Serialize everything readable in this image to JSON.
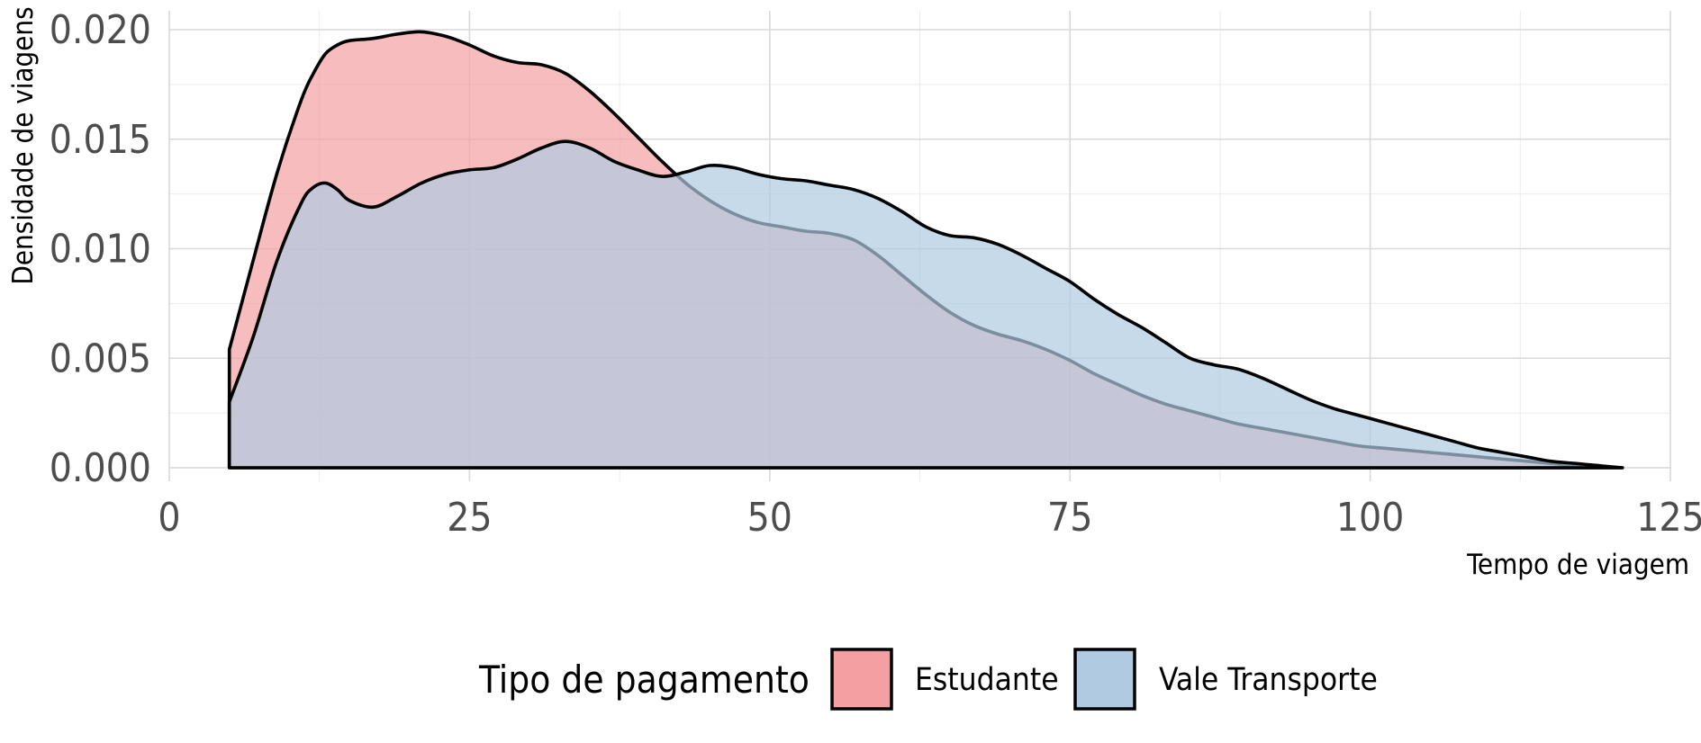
{
  "chart_data": {
    "type": "area",
    "subtype": "density",
    "xlabel": "Tempo de viagem",
    "ylabel": "Densidade de viagens",
    "xlim": [
      0,
      125
    ],
    "ylim": [
      0,
      0.02
    ],
    "x_ticks": [
      "0",
      "25",
      "50",
      "75",
      "100",
      "125"
    ],
    "y_ticks": [
      "0.000",
      "0.005",
      "0.010",
      "0.015",
      "0.020"
    ],
    "grid": true,
    "legend": {
      "title": "Tipo de pagamento",
      "position": "bottom"
    },
    "series": [
      {
        "name": "Estudante",
        "color": "#F4A0A2",
        "x": [
          5,
          7,
          9,
          11,
          12,
          13,
          14,
          15,
          17,
          19,
          21,
          23,
          25,
          27,
          29,
          31,
          33,
          35,
          37,
          39,
          41,
          43,
          45,
          47,
          49,
          51,
          53,
          55,
          57,
          59,
          61,
          63,
          65,
          67,
          69,
          71,
          73,
          75,
          77,
          79,
          81,
          83,
          85,
          87,
          89,
          91,
          93,
          95,
          97,
          99,
          101,
          103,
          105,
          107,
          109,
          111,
          113,
          115,
          117,
          119,
          121
        ],
        "y": [
          0.0054,
          0.0095,
          0.0135,
          0.0168,
          0.018,
          0.0189,
          0.0193,
          0.0195,
          0.0196,
          0.0198,
          0.0199,
          0.0197,
          0.0193,
          0.0188,
          0.0185,
          0.0184,
          0.018,
          0.0172,
          0.0162,
          0.0151,
          0.014,
          0.013,
          0.0122,
          0.0116,
          0.0112,
          0.011,
          0.0108,
          0.0107,
          0.0104,
          0.0097,
          0.0088,
          0.0079,
          0.0071,
          0.0065,
          0.0061,
          0.0058,
          0.0054,
          0.0049,
          0.0043,
          0.0038,
          0.0033,
          0.0029,
          0.0026,
          0.0023,
          0.002,
          0.0018,
          0.0016,
          0.0014,
          0.0012,
          0.001,
          0.0009,
          0.0008,
          0.0007,
          0.0006,
          0.0005,
          0.0004,
          0.0003,
          0.0002,
          0.0001,
          5e-05,
          0.0
        ]
      },
      {
        "name": "Vale Transporte",
        "color": "#AFCAE1",
        "x": [
          5,
          7,
          9,
          11,
          12,
          13,
          14,
          15,
          17,
          19,
          21,
          23,
          25,
          27,
          29,
          31,
          33,
          35,
          37,
          39,
          41,
          43,
          45,
          47,
          49,
          51,
          53,
          55,
          57,
          59,
          61,
          63,
          65,
          67,
          69,
          71,
          73,
          75,
          77,
          79,
          81,
          83,
          85,
          87,
          89,
          91,
          93,
          95,
          97,
          99,
          101,
          103,
          105,
          107,
          109,
          111,
          113,
          115,
          117,
          119,
          121
        ],
        "y": [
          0.003,
          0.006,
          0.0095,
          0.0121,
          0.0128,
          0.013,
          0.0127,
          0.0122,
          0.0119,
          0.0124,
          0.013,
          0.0134,
          0.0136,
          0.0137,
          0.0141,
          0.0146,
          0.0149,
          0.0146,
          0.014,
          0.0136,
          0.0133,
          0.0135,
          0.0138,
          0.0137,
          0.0134,
          0.0132,
          0.0131,
          0.0129,
          0.0127,
          0.0123,
          0.0117,
          0.011,
          0.0106,
          0.0105,
          0.0102,
          0.0097,
          0.0091,
          0.0085,
          0.0077,
          0.007,
          0.0064,
          0.0057,
          0.005,
          0.0047,
          0.0045,
          0.0041,
          0.0036,
          0.0031,
          0.0027,
          0.0024,
          0.0021,
          0.0018,
          0.0015,
          0.0012,
          0.0009,
          0.0007,
          0.0005,
          0.0003,
          0.0002,
          0.0001,
          0.0
        ]
      }
    ]
  }
}
